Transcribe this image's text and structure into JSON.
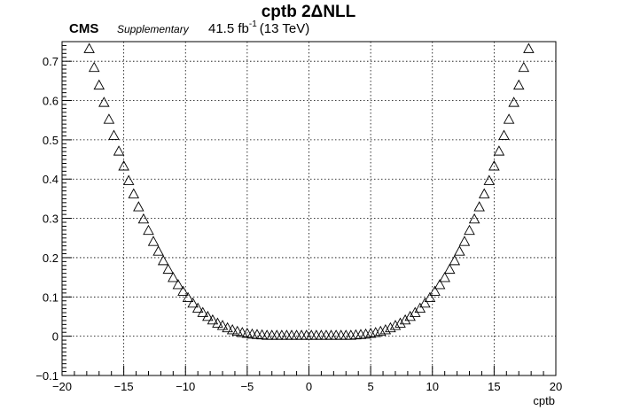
{
  "header": {
    "title": "cptb 2ΔNLL",
    "experiment": "CMS",
    "qualifier": "Supplementary",
    "lumi": "41.5 fb",
    "lumi_exp": "-1",
    "energy": "(13 TeV)"
  },
  "chart_data": {
    "type": "scatter",
    "title": "cptb 2ΔNLL",
    "xlabel": "cptb",
    "ylabel": "",
    "xlim": [
      -20,
      20
    ],
    "ylim": [
      -0.1,
      0.75
    ],
    "grid": true,
    "marker": "open-triangle",
    "x_ticks": [
      -20,
      -15,
      -10,
      -5,
      0,
      5,
      10,
      15,
      20
    ],
    "x_tick_labels": [
      "−20",
      "−15",
      "−10",
      "−5",
      "0",
      "5",
      "10",
      "15",
      "20"
    ],
    "y_ticks": [
      -0.1,
      0,
      0.1,
      0.2,
      0.3,
      0.4,
      0.5,
      0.6,
      0.7
    ],
    "y_tick_labels": [
      "−0.1",
      "0",
      "0.1",
      "0.2",
      "0.3",
      "0.4",
      "0.5",
      "0.6",
      "0.7"
    ],
    "series": [
      {
        "x": [
          -17.8,
          -17.4,
          -17.0,
          -16.6,
          -16.2,
          -15.8,
          -15.4,
          -15.0,
          -14.6,
          -14.2,
          -13.8,
          -13.4,
          -13.0,
          -12.6,
          -12.2,
          -11.8,
          -11.4,
          -11.0,
          -10.6,
          -10.2,
          -9.8,
          -9.4,
          -9.0,
          -8.6,
          -8.2,
          -7.8,
          -7.4,
          -7.0,
          -6.6,
          -6.2,
          -5.8,
          -5.4,
          -5.0,
          -4.6,
          -4.2,
          -3.8,
          -3.4,
          -3.0,
          -2.6,
          -2.2,
          -1.8,
          -1.4,
          -1.0,
          -0.6,
          -0.2,
          0.2,
          0.6,
          1.0,
          1.4,
          1.8,
          2.2,
          2.6,
          3.0,
          3.4,
          3.8,
          4.2,
          4.6,
          5.0,
          5.4,
          5.8,
          6.2,
          6.6,
          7.0,
          7.4,
          7.8,
          8.2,
          8.6,
          9.0,
          9.4,
          9.8,
          10.2,
          10.6,
          11.0,
          11.4,
          11.8,
          12.2,
          12.6,
          13.0,
          13.4,
          13.8,
          14.2,
          14.6,
          15.0,
          15.4,
          15.8,
          16.2,
          16.6,
          17.0,
          17.4,
          17.8
        ],
        "y": [
          0.73,
          0.682,
          0.637,
          0.593,
          0.55,
          0.509,
          0.469,
          0.431,
          0.394,
          0.36,
          0.327,
          0.296,
          0.267,
          0.239,
          0.214,
          0.19,
          0.168,
          0.147,
          0.129,
          0.112,
          0.096,
          0.082,
          0.069,
          0.058,
          0.048,
          0.039,
          0.031,
          0.025,
          0.019,
          0.014,
          0.01,
          0.007,
          0.005,
          0.003,
          0.002,
          0.001,
          0.0,
          0.0,
          0.0,
          0.0,
          0.0,
          0.0,
          0.0,
          0.0,
          0.0,
          0.0,
          0.0,
          0.0,
          0.0,
          0.0,
          0.0,
          0.0,
          0.0,
          0.0,
          0.001,
          0.002,
          0.003,
          0.005,
          0.007,
          0.01,
          0.014,
          0.019,
          0.025,
          0.031,
          0.039,
          0.048,
          0.058,
          0.069,
          0.082,
          0.096,
          0.112,
          0.129,
          0.147,
          0.168,
          0.19,
          0.214,
          0.239,
          0.267,
          0.296,
          0.327,
          0.36,
          0.394,
          0.431,
          0.469,
          0.509,
          0.55,
          0.593,
          0.637,
          0.682,
          0.73
        ]
      }
    ]
  }
}
